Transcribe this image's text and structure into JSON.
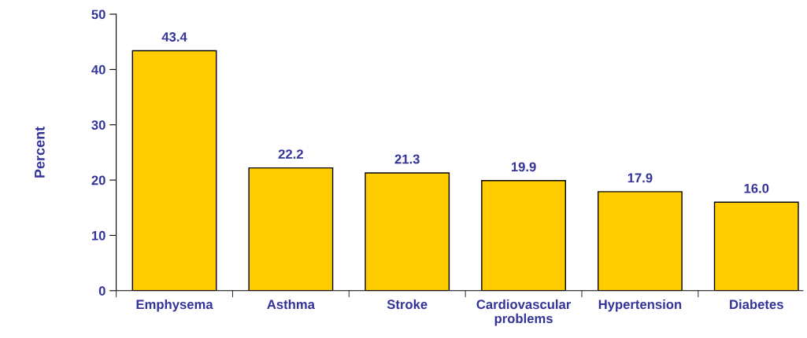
{
  "chart_data": {
    "type": "bar",
    "ylabel": "Percent",
    "categories": [
      "Emphysema",
      "Asthma",
      "Stroke",
      "Cardiovascular\nproblems",
      "Hypertension",
      "Diabetes"
    ],
    "values": [
      43.4,
      22.2,
      21.3,
      19.9,
      17.9,
      16.0
    ],
    "color": "#ffcc00",
    "ylim": [
      0,
      50
    ],
    "yticks": [
      0,
      10,
      20,
      30,
      40,
      50
    ],
    "grid": false,
    "legend": false,
    "value_labels": [
      "43.4",
      "22.2",
      "21.3",
      "19.9",
      "17.9",
      "16.0"
    ]
  }
}
